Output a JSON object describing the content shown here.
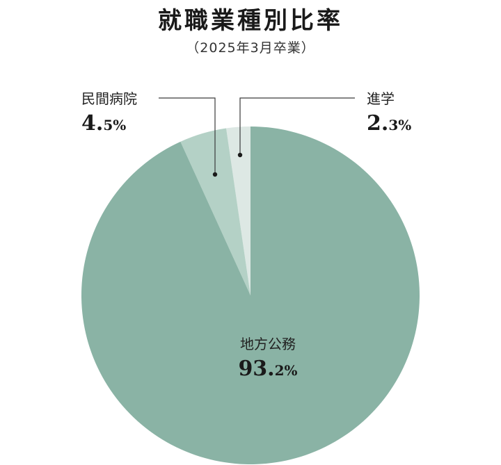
{
  "header": {
    "title": "就職業種別比率",
    "subtitle": "（2025年3月卒業）"
  },
  "chart_data": {
    "type": "pie",
    "slices": [
      {
        "label": "進学",
        "value": 2.3,
        "color": "#dde8e4",
        "value_text": {
          "main": "2.",
          "rest": "3%"
        }
      },
      {
        "label": "民間病院",
        "value": 4.5,
        "color": "#b4d1c6",
        "value_text": {
          "main": "4.",
          "rest": "5%"
        }
      },
      {
        "label": "地方公務",
        "value": 93.2,
        "color": "#8ab3a5",
        "value_text": {
          "main": "93.",
          "rest": "2%"
        }
      }
    ],
    "start_angle_deg": 0,
    "direction": "counterclockwise",
    "label_line_color": "#3a3a3a",
    "dot_color": "#1a1a1a"
  }
}
